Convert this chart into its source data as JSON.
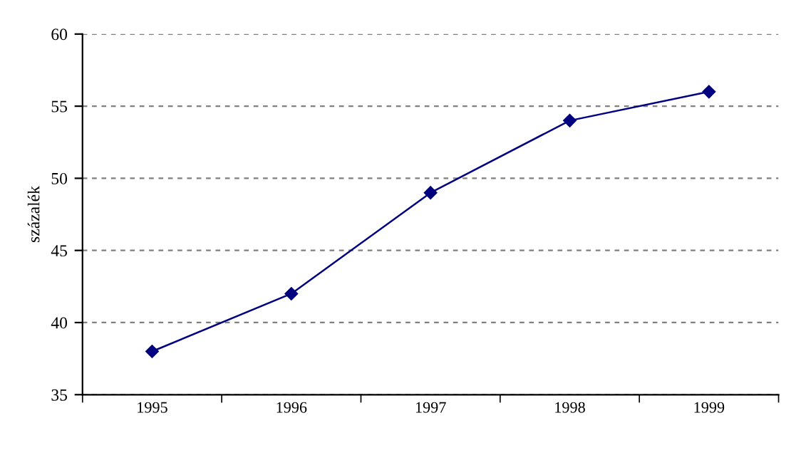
{
  "chart_data": {
    "type": "line",
    "ylabel": "százalék",
    "categories": [
      "1995",
      "1996",
      "1997",
      "1998",
      "1999"
    ],
    "series": [
      {
        "color": "#000080",
        "values": [
          38,
          42,
          49,
          54,
          56
        ]
      }
    ],
    "ylim": [
      35,
      60
    ],
    "yticks": [
      35,
      40,
      45,
      50,
      55,
      60
    ],
    "grid": "y",
    "marker": "diamond",
    "line_style": "solid",
    "legend": false
  }
}
